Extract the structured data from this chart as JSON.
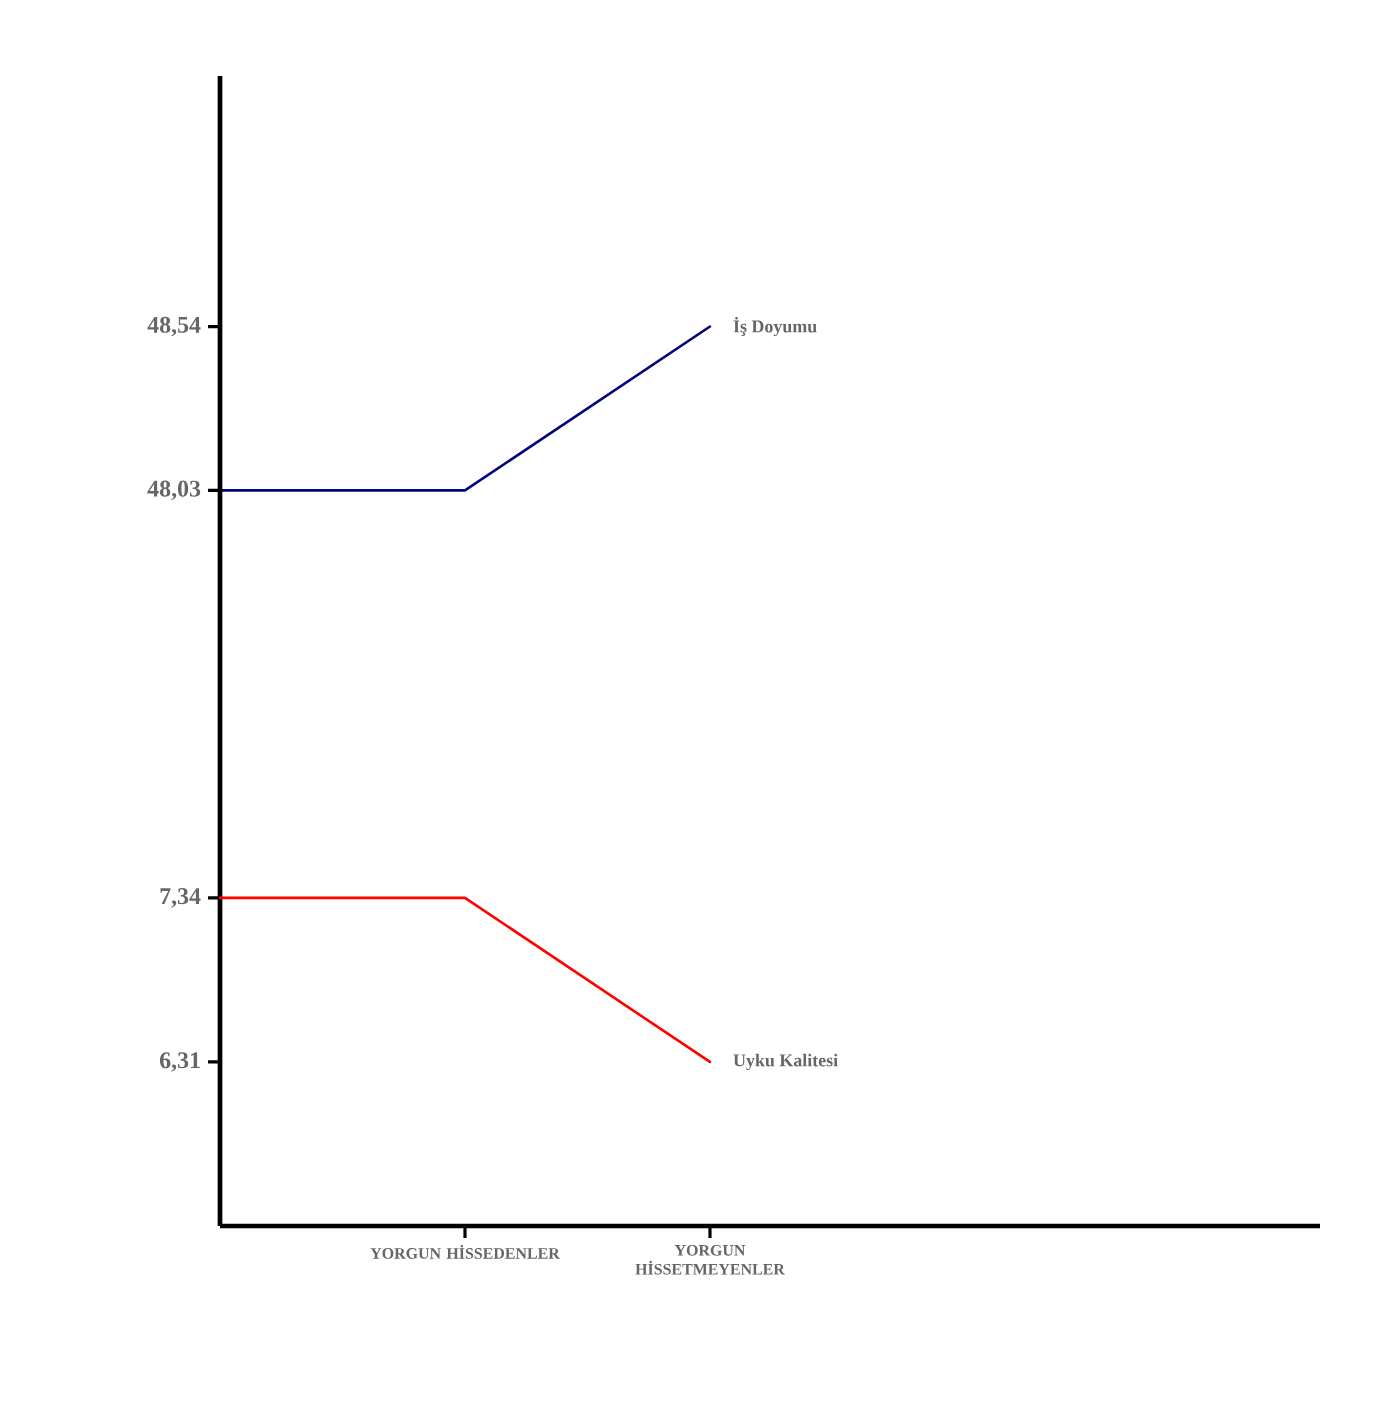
{
  "chart_data": {
    "type": "line",
    "categories": [
      null,
      "YORGUN HİSSEDENLER",
      "YORGUN HİSSETMEYENLER"
    ],
    "series": [
      {
        "name": "İş Doyumu",
        "color": "#000080",
        "values": [
          48.03,
          48.03,
          48.54
        ]
      },
      {
        "name": "Uyku Kalitesi",
        "color": "#ff0000",
        "values": [
          7.34,
          7.34,
          6.31
        ],
        "axis": "y2"
      }
    ],
    "ylim": [
      45.74,
      49.32
    ],
    "yticks": [
      {
        "value": 48.03,
        "label": "48,03"
      },
      {
        "value": 48.54,
        "label": "48,54"
      }
    ],
    "y2lim": [
      5.28,
      12.5
    ],
    "y2ticks": [
      {
        "value": 6.31,
        "label": "6,31"
      },
      {
        "value": 7.34,
        "label": "7,34"
      }
    ],
    "grid": false,
    "marker": "none",
    "line_style": "solid"
  }
}
